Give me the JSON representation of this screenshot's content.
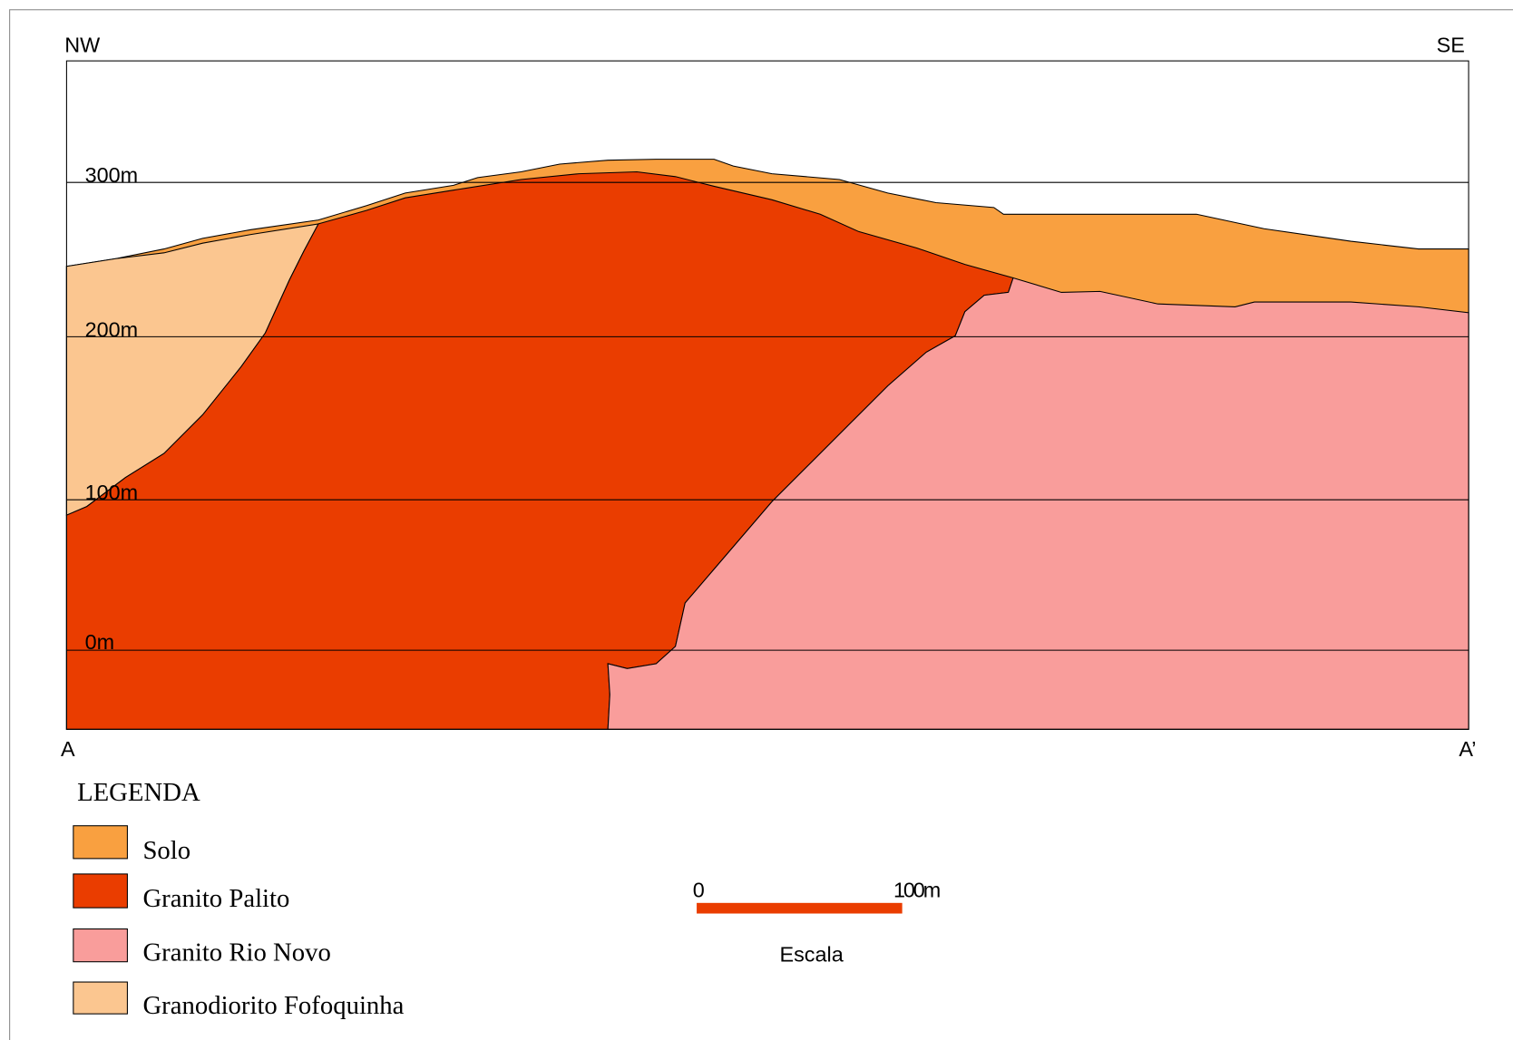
{
  "header": {
    "left": "NW",
    "right": "SE"
  },
  "elevations": [
    "300m",
    "200m",
    "100m",
    "0m"
  ],
  "section": {
    "start": "A",
    "end": "A’"
  },
  "legend": {
    "title": "LEGENDA",
    "items": [
      "Solo",
      "Granito Palito",
      "Granito Rio Novo",
      "Granodiorito Fofoquinha"
    ]
  },
  "scale": {
    "start": "0",
    "end": "100m",
    "label": "Escala"
  }
}
